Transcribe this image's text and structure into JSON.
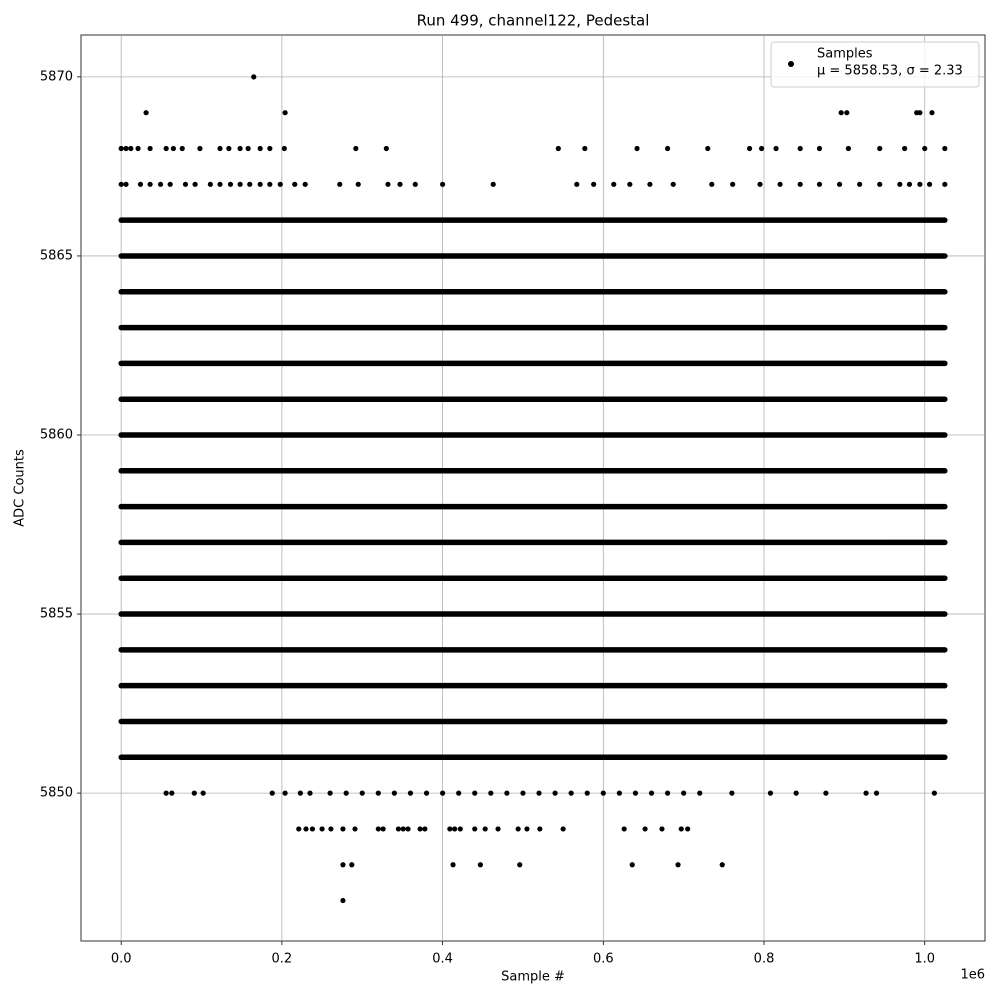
{
  "chart_data": {
    "type": "scatter",
    "title": "Run 499, channel122, Pedestal",
    "x_label": "Sample #",
    "y_label": "ADC Counts",
    "x_offset_label": "1e6",
    "xlim": [
      -50000,
      1075000
    ],
    "ylim": [
      5845.87,
      5871.17
    ],
    "xticks": [
      {
        "value": 0,
        "label": "0.0"
      },
      {
        "value": 200000,
        "label": "0.2"
      },
      {
        "value": 400000,
        "label": "0.4"
      },
      {
        "value": 600000,
        "label": "0.6"
      },
      {
        "value": 800000,
        "label": "0.8"
      },
      {
        "value": 1000000,
        "label": "1.0"
      }
    ],
    "yticks": [
      5850,
      5855,
      5860,
      5865,
      5870
    ],
    "grid": true,
    "legend_position": "upper right",
    "legend_stats": "μ = 5858.53, σ = 2.33",
    "series": [
      {
        "name": "Samples",
        "color": "#000000",
        "dense_rows": {
          "y": [
            5851,
            5852,
            5853,
            5854,
            5855,
            5856,
            5857,
            5858,
            5859,
            5860,
            5861,
            5862,
            5863,
            5864,
            5865,
            5866
          ],
          "x_range": [
            0,
            1025000
          ]
        },
        "x": [
          165000,
          31000,
          204000,
          896000,
          903000,
          990000,
          994000,
          1009000,
          0,
          6000,
          12000,
          21000,
          36000,
          56000,
          65000,
          76000,
          98000,
          123000,
          134000,
          148000,
          158000,
          173000,
          185000,
          203000,
          292000,
          330000,
          544000,
          577000,
          642000,
          680000,
          730000,
          782000,
          797000,
          815000,
          845000,
          869000,
          905000,
          944000,
          975000,
          1000000,
          1025000,
          0,
          6000,
          24000,
          36000,
          49000,
          61000,
          80000,
          92000,
          111000,
          123000,
          136000,
          148000,
          160000,
          173000,
          185000,
          198000,
          216000,
          229000,
          272000,
          295000,
          332000,
          347000,
          366000,
          400000,
          463000,
          567000,
          588000,
          613000,
          633000,
          658000,
          687000,
          735000,
          761000,
          795000,
          820000,
          845000,
          869000,
          894000,
          919000,
          944000,
          969000,
          981000,
          994000,
          1006000,
          1025000,
          56000,
          63000,
          91000,
          102000,
          188000,
          204000,
          223000,
          235000,
          260000,
          280000,
          300000,
          320000,
          340000,
          360000,
          380000,
          400000,
          420000,
          440000,
          460000,
          480000,
          500000,
          520000,
          540000,
          560000,
          580000,
          600000,
          620000,
          640000,
          660000,
          680000,
          700000,
          720000,
          760000,
          808000,
          840000,
          877000,
          927000,
          940000,
          1012000,
          221000,
          230000,
          238000,
          250000,
          261000,
          276000,
          291000,
          320000,
          326000,
          345000,
          351000,
          357000,
          372000,
          378000,
          409000,
          415000,
          422000,
          440000,
          453000,
          469000,
          494000,
          505000,
          521000,
          550000,
          626000,
          652000,
          673000,
          697000,
          705000,
          276000,
          287000,
          413000,
          447000,
          496000,
          636000,
          693000,
          748000,
          276000
        ],
        "y": [
          5870,
          5869,
          5869,
          5869,
          5869,
          5869,
          5869,
          5869,
          5868,
          5868,
          5868,
          5868,
          5868,
          5868,
          5868,
          5868,
          5868,
          5868,
          5868,
          5868,
          5868,
          5868,
          5868,
          5868,
          5868,
          5868,
          5868,
          5868,
          5868,
          5868,
          5868,
          5868,
          5868,
          5868,
          5868,
          5868,
          5868,
          5868,
          5868,
          5868,
          5868,
          5867,
          5867,
          5867,
          5867,
          5867,
          5867,
          5867,
          5867,
          5867,
          5867,
          5867,
          5867,
          5867,
          5867,
          5867,
          5867,
          5867,
          5867,
          5867,
          5867,
          5867,
          5867,
          5867,
          5867,
          5867,
          5867,
          5867,
          5867,
          5867,
          5867,
          5867,
          5867,
          5867,
          5867,
          5867,
          5867,
          5867,
          5867,
          5867,
          5867,
          5867,
          5867,
          5867,
          5867,
          5867,
          5850,
          5850,
          5850,
          5850,
          5850,
          5850,
          5850,
          5850,
          5850,
          5850,
          5850,
          5850,
          5850,
          5850,
          5850,
          5850,
          5850,
          5850,
          5850,
          5850,
          5850,
          5850,
          5850,
          5850,
          5850,
          5850,
          5850,
          5850,
          5850,
          5850,
          5850,
          5850,
          5850,
          5850,
          5850,
          5850,
          5850,
          5850,
          5850,
          5849,
          5849,
          5849,
          5849,
          5849,
          5849,
          5849,
          5849,
          5849,
          5849,
          5849,
          5849,
          5849,
          5849,
          5849,
          5849,
          5849,
          5849,
          5849,
          5849,
          5849,
          5849,
          5849,
          5849,
          5849,
          5849,
          5849,
          5849,
          5849,
          5848,
          5848,
          5848,
          5848,
          5848,
          5848,
          5848,
          5848,
          5847
        ]
      }
    ]
  }
}
